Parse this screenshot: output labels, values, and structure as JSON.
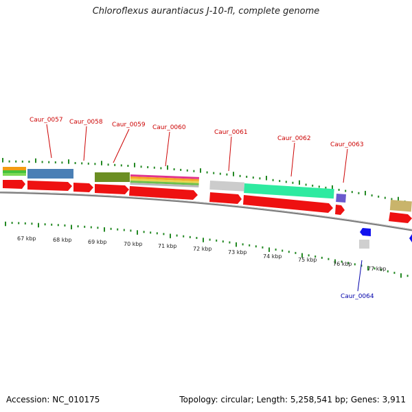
{
  "title": "Chloroflexus aurantiacus J-10-fl, complete genome",
  "footer": {
    "accession": "Accession: NC_010175",
    "summary": "Topology: circular; Length: 5,258,541 bp; Genes: 3,911"
  },
  "colors": {
    "forward_label": "#cc0000",
    "reverse_label": "#0000aa",
    "cds": "#ee1111",
    "tick": "#228822",
    "backbone": "#888888"
  },
  "kbp_ticks": [
    "67 kbp",
    "68 kbp",
    "69 kbp",
    "70 kbp",
    "71 kbp",
    "72 kbp",
    "73 kbp",
    "74 kbp",
    "75 kbp",
    "76 kbp",
    "77 kbp"
  ],
  "gene_labels": [
    {
      "text": "Caur_0057",
      "strand": "forward"
    },
    {
      "text": "Caur_0058",
      "strand": "forward"
    },
    {
      "text": "Caur_0059",
      "strand": "forward"
    },
    {
      "text": "Caur_0060",
      "strand": "forward"
    },
    {
      "text": "Caur_0061",
      "strand": "forward"
    },
    {
      "text": "Caur_0062",
      "strand": "forward"
    },
    {
      "text": "Caur_0063",
      "strand": "forward"
    },
    {
      "text": "Caur_0064",
      "strand": "reverse"
    }
  ]
}
